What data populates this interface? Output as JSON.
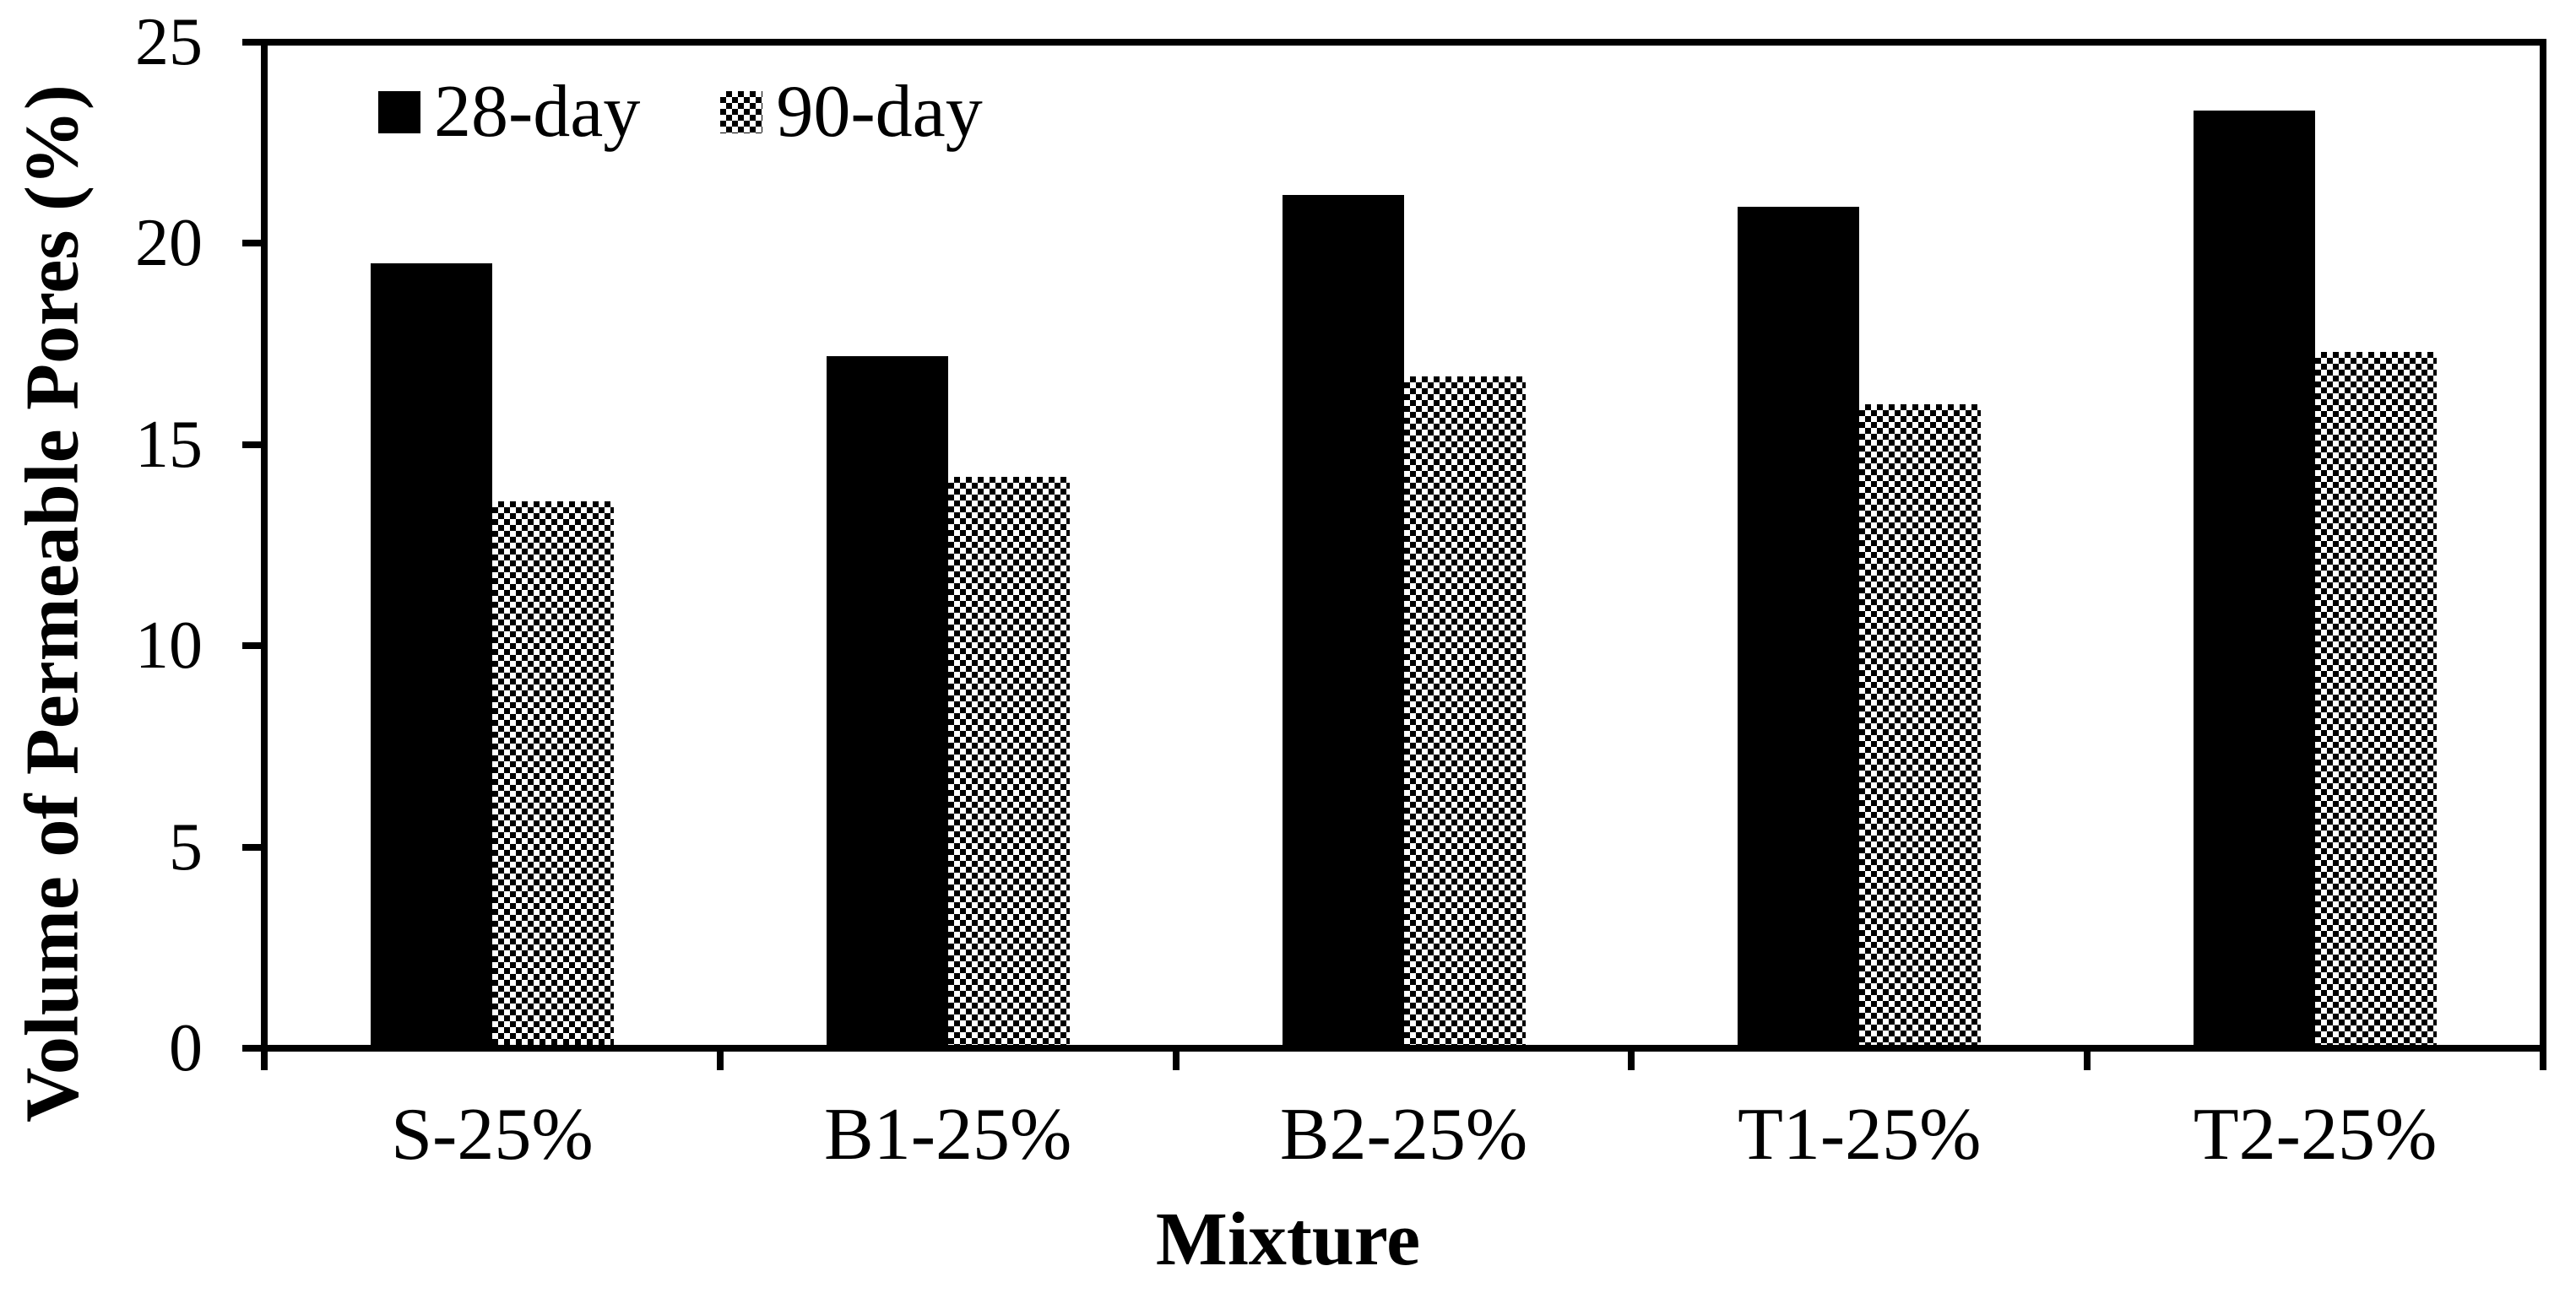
{
  "chart_data": {
    "type": "bar",
    "title": "",
    "categories": [
      "S-25%",
      "B1-25%",
      "B2-25%",
      "T1-25%",
      "T2-25%"
    ],
    "series": [
      {
        "name": "28-day",
        "fill": "solid-black",
        "values": [
          19.5,
          17.2,
          21.2,
          20.9,
          23.3
        ]
      },
      {
        "name": "90-day",
        "fill": "dotted-diamond-pattern",
        "values": [
          13.6,
          14.2,
          16.7,
          16.0,
          17.3
        ]
      }
    ],
    "xlabel": "Mixture",
    "ylabel": "Volume of Permeable Pores (%)",
    "ylim": [
      0,
      25
    ],
    "yticks": [
      0,
      5,
      10,
      15,
      20,
      25
    ],
    "grid": false,
    "legend_position": "top-left-inside",
    "colors": {
      "foreground": "#000000",
      "background": "#ffffff"
    }
  }
}
